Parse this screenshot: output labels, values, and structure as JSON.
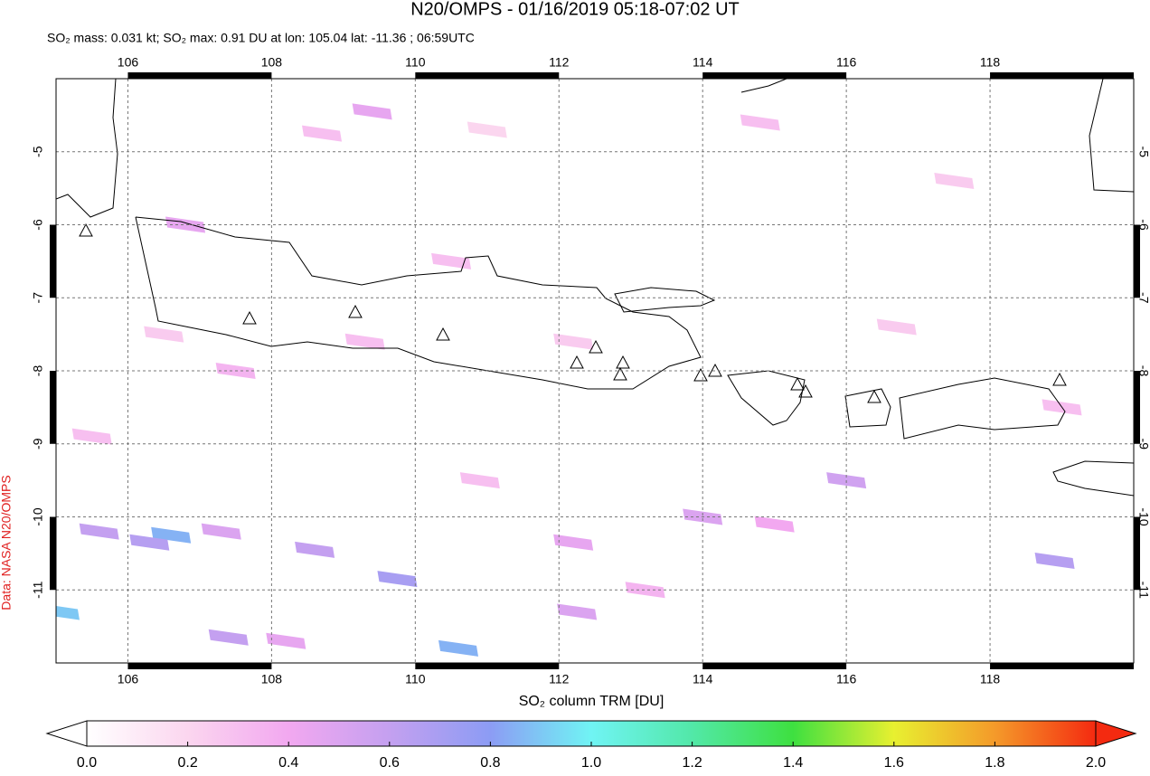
{
  "title": "N20/OMPS - 01/16/2019 05:18-07:02 UT",
  "subtitle": "SO₂ mass: 0.031 kt; SO₂ max: 0.91 DU at lon: 105.04 lat: -11.36 ; 06:59UTC",
  "credit": "Data: NASA N20/OMPS",
  "chart_data": {
    "type": "map",
    "xlim": [
      105,
      120
    ],
    "ylim": [
      -12,
      -4
    ],
    "xticks": [
      106,
      108,
      110,
      112,
      114,
      116,
      118
    ],
    "yticks": [
      -5,
      -6,
      -7,
      -8,
      -9,
      -10,
      -11
    ],
    "grid": true,
    "pixels": {
      "lon": [
        106.8,
        108.7,
        109.4,
        105.6,
        106.6,
        106.3,
        107.3,
        108.6,
        109.75,
        110.6,
        107.4,
        105.05,
        108.2,
        109.3,
        107.5,
        110.9,
        112.2,
        114.0,
        115.0,
        116.0,
        118.9,
        112.25,
        112.2,
        113.2,
        119.0,
        117.5,
        114.8,
        106.5,
        111.0,
        116.7,
        110.5,
        105.5
      ],
      "lat": [
        -6.0,
        -4.75,
        -4.45,
        -10.2,
        -10.25,
        -10.35,
        -10.2,
        -10.45,
        -10.85,
        -11.8,
        -11.65,
        -11.3,
        -11.7,
        -7.6,
        -8.0,
        -9.5,
        -7.6,
        -10.0,
        -10.1,
        -9.5,
        -10.6,
        -11.3,
        -10.35,
        -11.0,
        -8.5,
        -5.4,
        -4.6,
        -7.5,
        -4.7,
        -7.4,
        -6.5,
        -8.9
      ],
      "values": [
        0.45,
        0.3,
        0.45,
        0.6,
        0.85,
        0.65,
        0.5,
        0.6,
        0.7,
        0.85,
        0.6,
        0.9,
        0.45,
        0.3,
        0.35,
        0.3,
        0.25,
        0.5,
        0.4,
        0.55,
        0.65,
        0.5,
        0.45,
        0.35,
        0.3,
        0.25,
        0.3,
        0.25,
        0.2,
        0.25,
        0.3,
        0.3
      ]
    },
    "colorbar": {
      "label": "SO₂ column TRM [DU]",
      "lim": [
        0,
        2
      ],
      "ticks": [
        {
          "value": 0,
          "label": "0.0"
        },
        0.2,
        0.4,
        0.6,
        0.8,
        {
          "value": 1,
          "label": "1.0"
        },
        1.2,
        1.4,
        1.6,
        1.8,
        {
          "value": 2,
          "label": "2.0"
        }
      ],
      "colors": [
        "#ffffff",
        "#fbd6ef",
        "#f2a8f0",
        "#c4a0f0",
        "#8c9cf4",
        "#70f4f4",
        "#52e8a8",
        "#3ee040",
        "#e8f030",
        "#f49a2a",
        "#f42a10"
      ]
    }
  }
}
